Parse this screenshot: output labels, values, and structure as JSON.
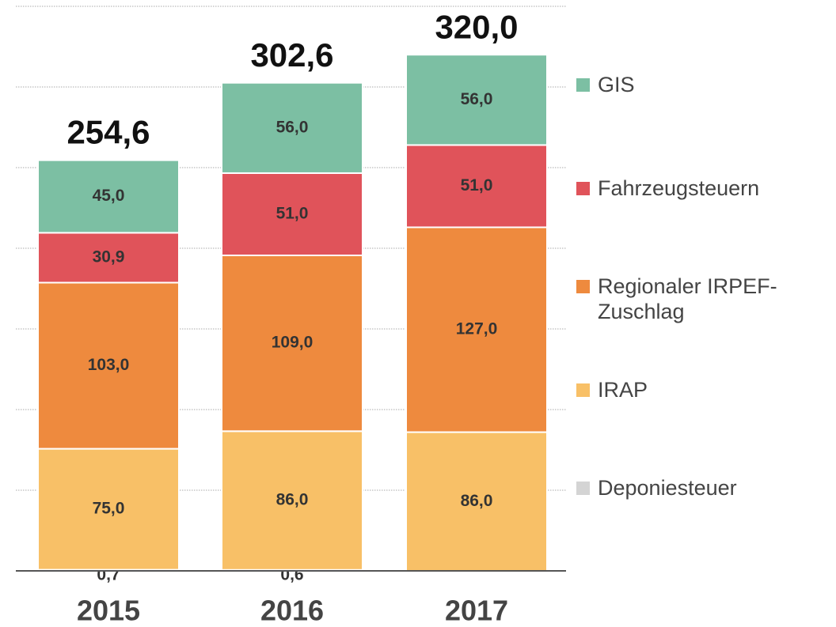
{
  "chart_data": {
    "type": "stacked_bar",
    "categories": [
      "2015",
      "2016",
      "2017"
    ],
    "series": [
      {
        "name": "Deponiesteuer",
        "color": "#d4d4d4",
        "values": [
          0.7,
          0.6,
          null
        ],
        "value_labels": [
          "0,7",
          "0,6",
          null
        ]
      },
      {
        "name": "IRAP",
        "color": "#f8c067",
        "values": [
          75.0,
          86.0,
          86.0
        ],
        "value_labels": [
          "75,0",
          "86,0",
          "86,0"
        ]
      },
      {
        "name": "Regionaler IRPEF-Zuschlag",
        "color": "#ee8a3e",
        "values": [
          103.0,
          109.0,
          127.0
        ],
        "value_labels": [
          "103,0",
          "109,0",
          "127,0"
        ]
      },
      {
        "name": "Fahrzeugsteuern",
        "color": "#e0535a",
        "values": [
          30.9,
          51.0,
          51.0
        ],
        "value_labels": [
          "30,9",
          "51,0",
          "51,0"
        ]
      },
      {
        "name": "GIS",
        "color": "#7cbfa3",
        "values": [
          45.0,
          56.0,
          56.0
        ],
        "value_labels": [
          "45,0",
          "56,0",
          "56,0"
        ]
      }
    ],
    "totals": [
      254.6,
      302.6,
      320.0
    ],
    "total_labels": [
      "254,6",
      "302,6",
      "320,0"
    ],
    "ylim": [
      0,
      350
    ],
    "yticks": [
      0,
      50,
      100,
      150,
      200,
      250,
      300,
      350
    ],
    "grid": true,
    "legend": "right"
  }
}
